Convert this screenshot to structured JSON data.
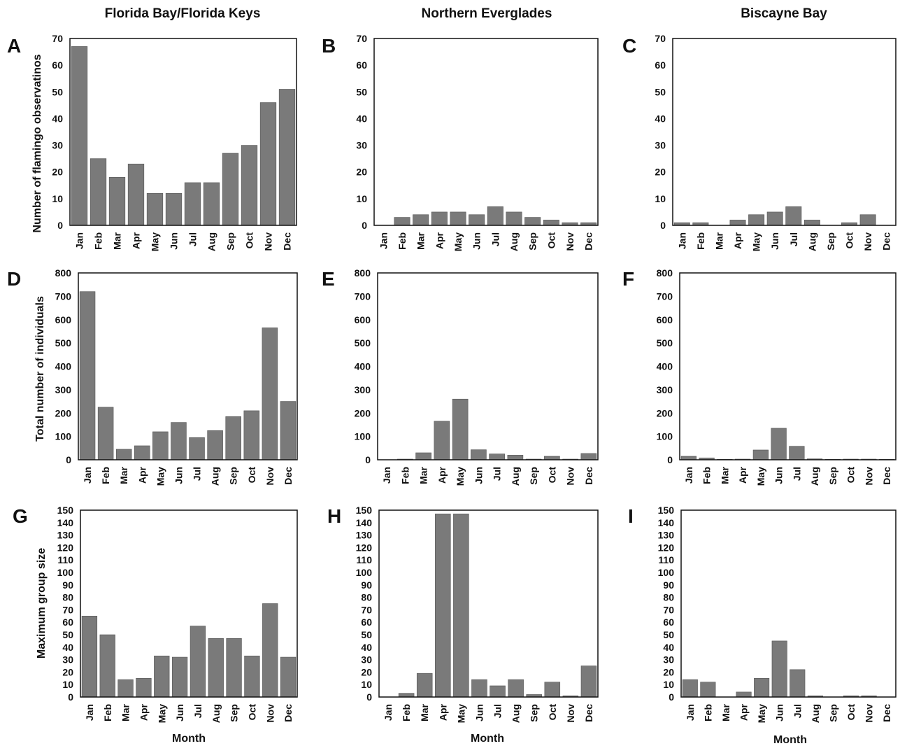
{
  "column_titles": [
    "Florida Bay/Florida Keys",
    "Northern Everglades",
    "Biscayne Bay"
  ],
  "row_ylabels": [
    "Number of flamingo observatinos",
    "Total number of individuals",
    "Maximum group size"
  ],
  "xlabel": "Month",
  "chart_data": [
    {
      "type": "bar",
      "panel": "A",
      "categories": [
        "Jan",
        "Feb",
        "Mar",
        "Apr",
        "May",
        "Jun",
        "Jul",
        "Aug",
        "Sep",
        "Oct",
        "Nov",
        "Dec"
      ],
      "values": [
        67,
        25,
        18,
        23,
        12,
        12,
        16,
        16,
        27,
        30,
        46,
        51
      ],
      "ylim": [
        0,
        70
      ],
      "yticks": [
        0,
        10,
        20,
        30,
        40,
        50,
        60,
        70
      ]
    },
    {
      "type": "bar",
      "panel": "B",
      "categories": [
        "Jan",
        "Feb",
        "Mar",
        "Apr",
        "May",
        "Jun",
        "Jul",
        "Aug",
        "Sep",
        "Oct",
        "Nov",
        "Dec"
      ],
      "values": [
        0,
        3,
        4,
        5,
        5,
        4,
        7,
        5,
        3,
        2,
        1,
        1
      ],
      "ylim": [
        0,
        70
      ],
      "yticks": [
        0,
        10,
        20,
        30,
        40,
        50,
        60,
        70
      ]
    },
    {
      "type": "bar",
      "panel": "C",
      "categories": [
        "Jan",
        "Feb",
        "Mar",
        "Apr",
        "May",
        "Jun",
        "Jul",
        "Aug",
        "Sep",
        "Oct",
        "Nov",
        "Dec"
      ],
      "values": [
        1,
        1,
        0,
        2,
        4,
        5,
        7,
        2,
        0,
        1,
        4,
        0
      ],
      "ylim": [
        0,
        70
      ],
      "yticks": [
        0,
        10,
        20,
        30,
        40,
        50,
        60,
        70
      ]
    },
    {
      "type": "bar",
      "panel": "D",
      "categories": [
        "Jan",
        "Feb",
        "Mar",
        "Apr",
        "May",
        "Jun",
        "Jul",
        "Aug",
        "Sep",
        "Oct",
        "Nov",
        "Dec"
      ],
      "values": [
        720,
        225,
        45,
        60,
        120,
        160,
        95,
        125,
        185,
        210,
        565,
        250
      ],
      "ylim": [
        0,
        800
      ],
      "yticks": [
        0,
        100,
        200,
        300,
        400,
        500,
        600,
        700,
        800
      ]
    },
    {
      "type": "bar",
      "panel": "E",
      "categories": [
        "Jan",
        "Feb",
        "Mar",
        "Apr",
        "May",
        "Jun",
        "Jul",
        "Aug",
        "Sep",
        "Oct",
        "Nov",
        "Dec"
      ],
      "values": [
        0,
        3,
        30,
        165,
        260,
        43,
        25,
        20,
        3,
        15,
        3,
        27
      ],
      "ylim": [
        0,
        800
      ],
      "yticks": [
        0,
        100,
        200,
        300,
        400,
        500,
        600,
        700,
        800
      ]
    },
    {
      "type": "bar",
      "panel": "F",
      "categories": [
        "Jan",
        "Feb",
        "Mar",
        "Apr",
        "May",
        "Jun",
        "Jul",
        "Aug",
        "Sep",
        "Oct",
        "Nov",
        "Dec"
      ],
      "values": [
        15,
        8,
        2,
        3,
        42,
        135,
        58,
        4,
        2,
        3,
        3,
        2
      ],
      "ylim": [
        0,
        800
      ],
      "yticks": [
        0,
        100,
        200,
        300,
        400,
        500,
        600,
        700,
        800
      ]
    },
    {
      "type": "bar",
      "panel": "G",
      "categories": [
        "Jan",
        "Feb",
        "Mar",
        "Apr",
        "May",
        "Jun",
        "Jul",
        "Aug",
        "Sep",
        "Oct",
        "Nov",
        "Dec"
      ],
      "values": [
        65,
        50,
        14,
        15,
        33,
        32,
        57,
        47,
        47,
        33,
        75,
        32
      ],
      "ylim": [
        0,
        150
      ],
      "yticks": [
        0,
        10,
        20,
        30,
        40,
        50,
        60,
        70,
        80,
        90,
        100,
        110,
        120,
        130,
        140,
        150
      ]
    },
    {
      "type": "bar",
      "panel": "H",
      "categories": [
        "Jan",
        "Feb",
        "Mar",
        "Apr",
        "May",
        "Jun",
        "Jul",
        "Aug",
        "Sep",
        "Oct",
        "Nov",
        "Dec"
      ],
      "values": [
        0,
        3,
        19,
        147,
        147,
        14,
        9,
        14,
        2,
        12,
        1,
        25
      ],
      "ylim": [
        0,
        150
      ],
      "yticks": [
        0,
        10,
        20,
        30,
        40,
        50,
        60,
        70,
        80,
        90,
        100,
        110,
        120,
        130,
        140,
        150
      ]
    },
    {
      "type": "bar",
      "panel": "I",
      "categories": [
        "Jan",
        "Feb",
        "Mar",
        "Apr",
        "May",
        "Jun",
        "Jul",
        "Aug",
        "Sep",
        "Oct",
        "Nov",
        "Dec"
      ],
      "values": [
        14,
        12,
        0,
        4,
        15,
        45,
        22,
        1,
        0,
        1,
        1,
        0
      ],
      "ylim": [
        0,
        150
      ],
      "yticks": [
        0,
        10,
        20,
        30,
        40,
        50,
        60,
        70,
        80,
        90,
        100,
        110,
        120,
        130,
        140,
        150
      ]
    }
  ]
}
